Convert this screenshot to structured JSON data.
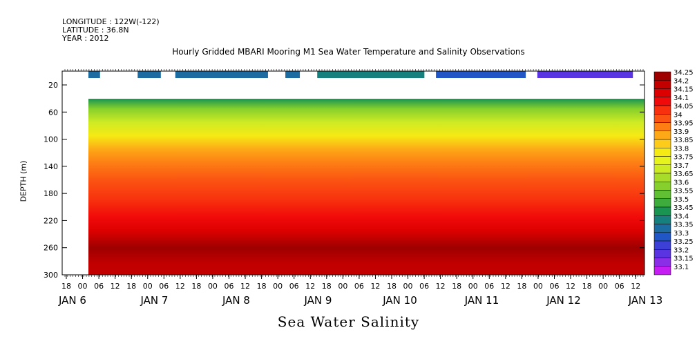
{
  "header": {
    "longitude": "LONGITUDE : 122W(-122)",
    "latitude": "LATITUDE : 36.8N",
    "year": "YEAR : 2012"
  },
  "chart_data": {
    "type": "heatmap",
    "title": "Hourly Gridded MBARI Mooring M1 Sea Water Temperature and Salinity Observations",
    "bottom_title": "Sea Water Salinity",
    "ylabel": "DEPTH (m)",
    "xlabel": "",
    "x_hour_ticks": [
      "18",
      "00",
      "06",
      "12",
      "18",
      "00",
      "06",
      "12",
      "18",
      "00",
      "06",
      "12",
      "18",
      "00",
      "06",
      "12",
      "18",
      "00",
      "06",
      "12",
      "18",
      "00",
      "06",
      "12",
      "18",
      "00",
      "06",
      "12",
      "18",
      "00",
      "06",
      "12",
      "18",
      "00",
      "06",
      "12"
    ],
    "x_day_labels": [
      "JAN 6",
      "JAN 7",
      "JAN 8",
      "JAN 9",
      "JAN 10",
      "JAN 11",
      "JAN 12",
      "JAN 13"
    ],
    "y_tick_labels": [
      "20",
      "60",
      "100",
      "140",
      "180",
      "220",
      "260",
      "300"
    ],
    "ylim": [
      300,
      0
    ],
    "colorbar_labels": [
      "34.25",
      "34.2",
      "34.15",
      "34.1",
      "34.05",
      "34",
      "33.95",
      "33.9",
      "33.85",
      "33.8",
      "33.75",
      "33.7",
      "33.65",
      "33.6",
      "33.55",
      "33.5",
      "33.45",
      "33.4",
      "33.35",
      "33.3",
      "33.25",
      "33.2",
      "33.15",
      "33.1"
    ],
    "colorbar_colors": [
      "#9e0000",
      "#c30000",
      "#dd0000",
      "#f10a0a",
      "#f8300e",
      "#fb5412",
      "#fd7f14",
      "#fda816",
      "#fdcb1a",
      "#f6ea14",
      "#e6f31c",
      "#cdeb24",
      "#a8dc2a",
      "#86cf2c",
      "#61bf34",
      "#3eac3c",
      "#1a9551",
      "#15807d",
      "#1c6ca2",
      "#2156c6",
      "#3c40d6",
      "#5a34e0",
      "#8a2ee8",
      "#c41ef2"
    ],
    "depth_profile": [
      {
        "depth": 40,
        "salinity": 33.45
      },
      {
        "depth": 55,
        "salinity": 33.6
      },
      {
        "depth": 75,
        "salinity": 33.7
      },
      {
        "depth": 95,
        "salinity": 33.8
      },
      {
        "depth": 115,
        "salinity": 33.9
      },
      {
        "depth": 135,
        "salinity": 33.95
      },
      {
        "depth": 160,
        "salinity": 34.0
      },
      {
        "depth": 190,
        "salinity": 34.05
      },
      {
        "depth": 215,
        "salinity": 34.1
      },
      {
        "depth": 235,
        "salinity": 34.15
      },
      {
        "depth": 260,
        "salinity": 34.25
      },
      {
        "depth": 285,
        "salinity": 34.2
      }
    ],
    "top_sensor_segments": [
      {
        "start": "JAN 6 00",
        "end": "JAN 6 04",
        "salinity": 33.35
      },
      {
        "start": "JAN 6 17",
        "end": "JAN 7 01",
        "salinity": 33.35
      },
      {
        "start": "JAN 7 06",
        "end": "JAN 8 14",
        "salinity": 33.35
      },
      {
        "start": "JAN 8 20",
        "end": "JAN 9 01",
        "salinity": 33.35
      },
      {
        "start": "JAN 9 07",
        "end": "JAN 10 20",
        "salinity": 33.4
      },
      {
        "start": "JAN 11 00",
        "end": "JAN 12 07",
        "salinity": 33.3
      },
      {
        "start": "JAN 12 11",
        "end": "JAN 13 20",
        "salinity": 33.2
      }
    ]
  }
}
